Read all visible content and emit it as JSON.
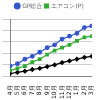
{
  "chart_data": {
    "type": "line",
    "categories": [
      "4月",
      "5月",
      "6月",
      "7月",
      "8月",
      "9月",
      "10月",
      "11月",
      "12月",
      "1月",
      "2月",
      "3月"
    ],
    "series": [
      {
        "name": "GP総合",
        "color": "#3355cc",
        "marker": "circle",
        "values": [
          18,
          22,
          30,
          35,
          42,
          50,
          55,
          65,
          70,
          75,
          85,
          88
        ]
      },
      {
        "name": "エアコン(P)",
        "color": "#33aa33",
        "marker": "square",
        "values": [
          10,
          14,
          18,
          25,
          30,
          38,
          45,
          50,
          55,
          62,
          68,
          70
        ]
      },
      {
        "color": "#000000",
        "marker": "diamond",
        "values": [
          5,
          7,
          9,
          12,
          14,
          17,
          20,
          24,
          27,
          30,
          33,
          35
        ]
      }
    ],
    "ylim": [
      0,
      100
    ],
    "yticks": [
      0,
      20,
      40,
      60,
      80,
      100
    ],
    "grid": true,
    "legend": "top",
    "tick_labels": "x"
  }
}
